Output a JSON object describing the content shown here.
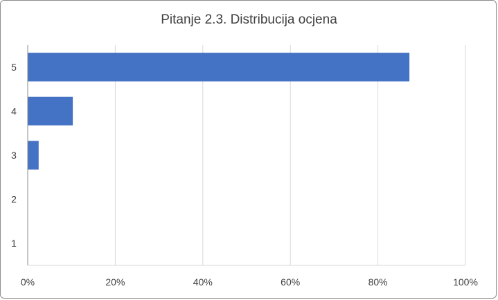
{
  "chart_data": {
    "type": "bar",
    "orientation": "horizontal",
    "title": "Pitanje 2.3. Distribucija ocjena",
    "xlabel": "",
    "ylabel": "",
    "categories": [
      "5",
      "4",
      "3",
      "2",
      "1"
    ],
    "values": [
      87.2,
      10.3,
      2.5,
      0,
      0
    ],
    "xlim": [
      0,
      100
    ],
    "x_ticks": [
      "0%",
      "20%",
      "40%",
      "60%",
      "80%",
      "100%"
    ],
    "x_tick_values": [
      0,
      20,
      40,
      60,
      80,
      100
    ],
    "grid": "vertical",
    "legend": "none",
    "bar_color": "#4472c4",
    "grid_color": "#d9d9d9"
  }
}
